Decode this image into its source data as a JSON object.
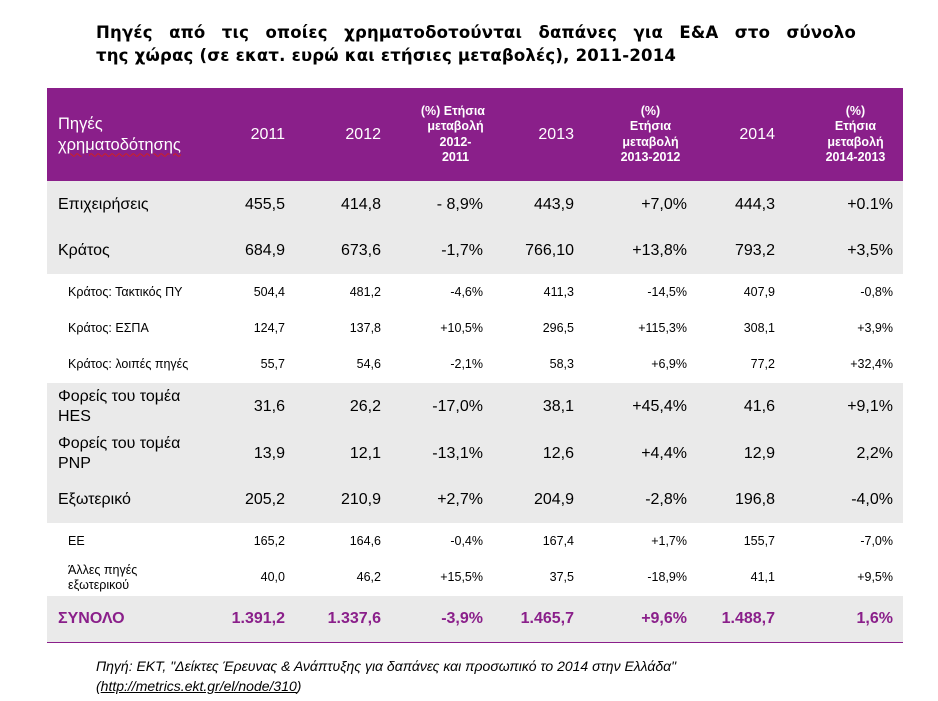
{
  "title": {
    "line1": "Πηγές από τις οποίες χρηματοδοτούνται δαπάνες για Ε&Α στο σύνολο",
    "line2": "της χώρας (σε εκατ. ευρώ και ετήσιες μεταβολές), 2011-2014"
  },
  "table": {
    "header": {
      "label_line1": "Πηγές",
      "label_line2": "χρηματοδότησης",
      "y2011": "2011",
      "y2012": "2012",
      "c1": [
        "(%) Ετήσια",
        "μεταβολή",
        "2012-2011"
      ],
      "y2013": "2013",
      "c2": [
        "(%)",
        "Ετήσια",
        "μεταβολή",
        "2013-2012"
      ],
      "y2014": "2014",
      "c3": [
        "(%)",
        "Ετήσια",
        "μεταβολή",
        "2014-2013"
      ]
    },
    "rows": [
      {
        "label": "Επιχειρήσεις",
        "v": [
          "455,5",
          "414,8",
          "- 8,9%",
          "443,9",
          "+7,0%",
          "444,3",
          "+0.1%"
        ]
      },
      {
        "label": "Κράτος",
        "v": [
          "684,9",
          "673,6",
          "-1,7%",
          "766,10",
          "+13,8%",
          "793,2",
          "+3,5%"
        ]
      },
      {
        "label": "Κράτος: Τακτικός ΠΥ",
        "v": [
          "504,4",
          "481,2",
          "-4,6%",
          "411,3",
          "-14,5%",
          "407,9",
          "-0,8%"
        ]
      },
      {
        "label": "Κράτος: ΕΣΠΑ",
        "v": [
          "124,7",
          "137,8",
          "+10,5%",
          "296,5",
          "+115,3%",
          "308,1",
          "+3,9%"
        ]
      },
      {
        "label": "Κράτος: λοιπές πηγές",
        "v": [
          "55,7",
          "54,6",
          "-2,1%",
          "58,3",
          "+6,9%",
          "77,2",
          "+32,4%"
        ]
      },
      {
        "label_line1": "Φορείς του τομέα",
        "label_line2": "HES",
        "v": [
          "31,6",
          "26,2",
          "-17,0%",
          "38,1",
          "+45,4%",
          "41,6",
          "+9,1%"
        ]
      },
      {
        "label_line1": "Φορείς του τομέα",
        "label_line2": "PNP",
        "v": [
          "13,9",
          "12,1",
          "-13,1%",
          "12,6",
          "+4,4%",
          "12,9",
          "2,2%"
        ]
      },
      {
        "label": "Εξωτερικό",
        "v": [
          "205,2",
          "210,9",
          "+2,7%",
          "204,9",
          "-2,8%",
          "196,8",
          "-4,0%"
        ]
      },
      {
        "label": "ΕΕ",
        "v": [
          "165,2",
          "164,6",
          "-0,4%",
          "167,4",
          "+1,7%",
          "155,7",
          "-7,0%"
        ]
      },
      {
        "label_line1": "Άλλες πηγές",
        "label_line2": "εξωτερικού",
        "v": [
          "40,0",
          "46,2",
          "+15,5%",
          "37,5",
          "-18,9%",
          "41,1",
          "+9,5%"
        ]
      },
      {
        "label": "ΣΥΝΟΛΟ",
        "v": [
          "1.391,2",
          "1.337,6",
          "-3,9%",
          "1.465,7",
          "+9,6%",
          "1.488,7",
          "1,6%"
        ]
      }
    ]
  },
  "source": {
    "line1": "Πηγή: ΕΚΤ, \"Δείκτες Έρευνας & Ανάπτυξης για δαπάνες και προσωπικό το 2014 στην Ελλάδα\"",
    "open": "(",
    "url": "http://metrics.ekt.gr/el/node/310",
    "close": ")"
  }
}
